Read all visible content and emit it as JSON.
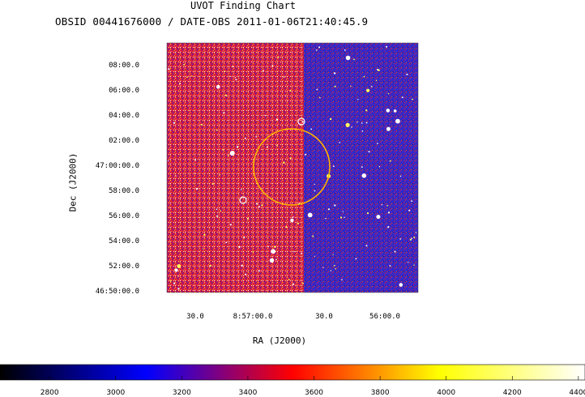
{
  "title": "UVOT Finding Chart",
  "subtitle": "OBSID 00441676000 / DATE-OBS 2011-01-06T21:40:45.9",
  "chart_data": {
    "type": "heatmap",
    "title": "UVOT Finding Chart",
    "subtitle": "OBSID 00441676000 / DATE-OBS 2011-01-06T21:40:45.9",
    "xlabel": "RA (J2000)",
    "ylabel": "Dec (J2000)",
    "x_ticks": [
      "30.0",
      "8:57:00.0",
      "30.0",
      "56:00.0"
    ],
    "y_ticks": [
      "08:00.0",
      "06:00.0",
      "04:00.0",
      "02:00.0",
      "47:00:00.0",
      "58:00.0",
      "56:00.0",
      "54:00.0",
      "52:00.0",
      "46:50:00.0"
    ],
    "colorbar": {
      "ticks": [
        "2800",
        "3000",
        "3200",
        "3400",
        "3600",
        "3800",
        "4000",
        "4200",
        "4400"
      ],
      "range": [
        2650,
        4420
      ],
      "colormap": [
        "#000000",
        "#0000ff",
        "#ff0000",
        "#ffff00",
        "#ffffff"
      ]
    },
    "markers": [
      {
        "type": "circle",
        "color": "#ffb000"
      },
      {
        "type": "small-circle",
        "color": "#ffffff"
      },
      {
        "type": "small-circle",
        "color": "#ffffff"
      }
    ],
    "grid": false
  }
}
